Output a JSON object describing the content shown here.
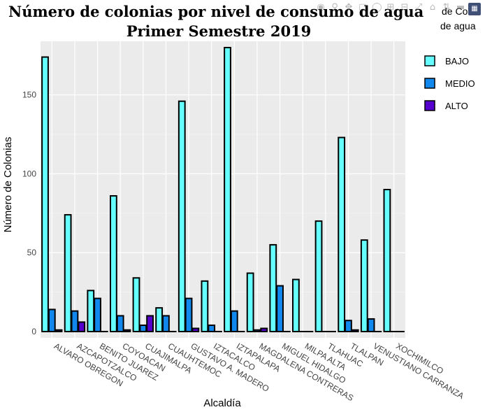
{
  "chart_data": {
    "type": "bar",
    "title": "Número de colonias por nivel de consumo de agua",
    "subtitle": "Primer Semestre 2019",
    "xlabel": "Alcaldía",
    "ylabel": "Número de Colonias",
    "legend_title": "Nivel de Consumo de agua",
    "legend_title_visible": "de Cons",
    "legend_title_visible2": "de agua",
    "ylim": [
      -4,
      184
    ],
    "yticks": [
      0,
      50,
      100,
      150
    ],
    "categories": [
      "ALVARO OBREGON",
      "AZCAPOTZALCO",
      "BENITO JUAREZ",
      "COYOACAN",
      "CUAJIMALPA",
      "CUAUHTEMOC",
      "GUSTAVO A. MADERO",
      "IZTACALCO",
      "IZTAPALAPA",
      "MAGDALENA CONTRERAS",
      "MIGUEL HIDALGO",
      "MILPA ALTA",
      "TLAHUAC",
      "TLALPAN",
      "VENUSTIANO CARRANZA",
      "XOCHIMILCO"
    ],
    "series": [
      {
        "name": "BAJO",
        "color": "#66ffff",
        "values": [
          174,
          74,
          26,
          86,
          34,
          15,
          146,
          32,
          180,
          37,
          55,
          33,
          70,
          123,
          58,
          90
        ]
      },
      {
        "name": "MEDIO",
        "color": "#1188ee",
        "values": [
          14,
          13,
          21,
          10,
          4,
          10,
          21,
          4,
          13,
          1,
          29,
          0,
          0,
          7,
          8,
          0
        ]
      },
      {
        "name": "ALTO",
        "color": "#5500cc",
        "values": [
          1,
          6,
          0,
          1,
          10,
          0,
          2,
          0,
          0,
          2,
          0,
          0,
          0,
          1,
          0,
          0
        ]
      }
    ],
    "grid": true,
    "legend_position": "right"
  }
}
